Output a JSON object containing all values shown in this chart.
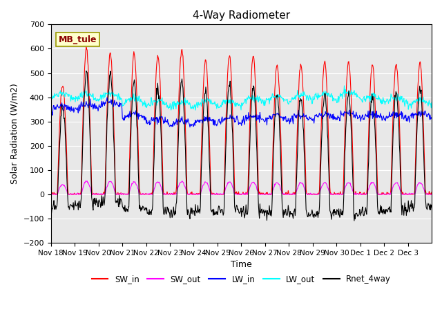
{
  "title": "4-Way Radiometer",
  "xlabel": "Time",
  "ylabel": "Solar Radiation (W/m2)",
  "ylim": [
    -200,
    700
  ],
  "yticks": [
    -200,
    -100,
    0,
    100,
    200,
    300,
    400,
    500,
    600,
    700
  ],
  "annotation_text": "MB_tule",
  "bg_color": "#e8e8e8",
  "legend_entries": [
    "SW_in",
    "SW_out",
    "LW_in",
    "LW_out",
    "Rnet_4way"
  ],
  "line_colors": [
    "red",
    "magenta",
    "blue",
    "cyan",
    "black"
  ],
  "xtick_labels": [
    "Nov 18",
    "Nov 19",
    "Nov 20",
    "Nov 21",
    "Nov 22",
    "Nov 23",
    "Nov 24",
    "Nov 25",
    "Nov 26",
    "Nov 27",
    "Nov 28",
    "Nov 29",
    "Nov 30",
    "Dec 1",
    "Dec 2",
    "Dec 3"
  ],
  "n_days": 16,
  "pts_per_day": 48,
  "sw_in_peaks": [
    450,
    600,
    580,
    580,
    570,
    600,
    550,
    570,
    570,
    535,
    535,
    545,
    545,
    535,
    535,
    545
  ],
  "lw_in_pattern": [
    345,
    350,
    360,
    310,
    290,
    285,
    290,
    295,
    300,
    305,
    305,
    310,
    315,
    310,
    310,
    315
  ],
  "lw_out_pattern": [
    390,
    390,
    390,
    370,
    360,
    355,
    360,
    360,
    370,
    380,
    385,
    390,
    395,
    380,
    375,
    365
  ]
}
